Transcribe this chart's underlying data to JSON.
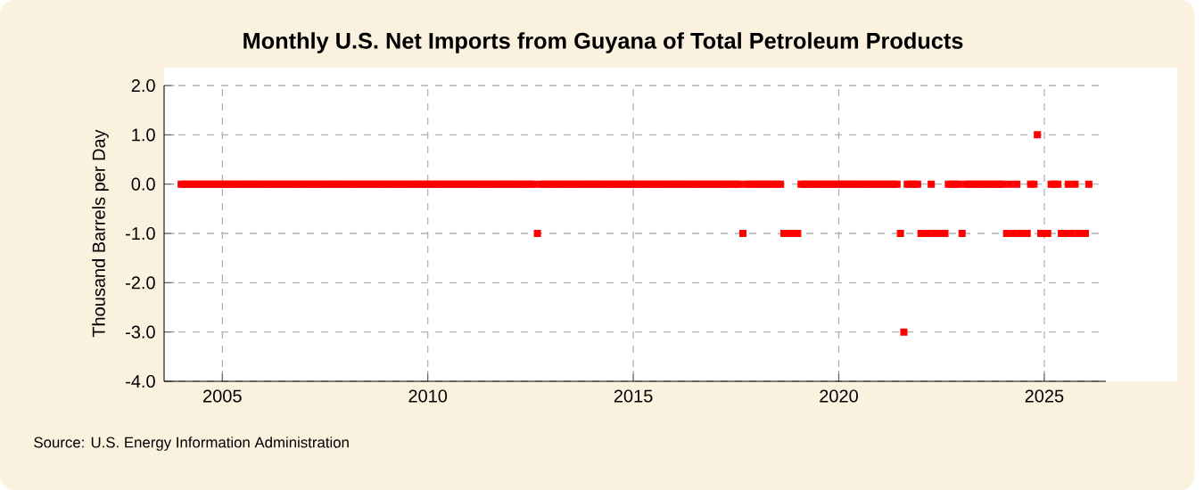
{
  "chart_data": {
    "type": "scatter",
    "title": "Monthly U.S. Net Imports from Guyana of Total Petroleum Products",
    "ylabel": "Thousand Barrels per Day",
    "annotations": [
      "Source: U.S. Energy Information Administration"
    ],
    "color": "#ff0000",
    "marker": "square",
    "grid": true,
    "xlim": [
      "2003-08",
      "2026-07"
    ],
    "xticks": [
      "2005",
      "2010",
      "2015",
      "2020",
      "2025"
    ],
    "ylim": [
      -4,
      2
    ],
    "yticks": [
      {
        "value": -4,
        "label": "-4.0"
      },
      {
        "value": -3,
        "label": "-3.0"
      },
      {
        "value": -2,
        "label": "-2.0"
      },
      {
        "value": -1,
        "label": "-1.0"
      },
      {
        "value": 0,
        "label": "0.0"
      },
      {
        "value": 1,
        "label": "1.0"
      },
      {
        "value": 2,
        "label": "2.0"
      }
    ],
    "x": [
      "2004-01",
      "2004-02",
      "2004-03",
      "2004-04",
      "2004-05",
      "2004-06",
      "2004-07",
      "2004-08",
      "2004-09",
      "2004-10",
      "2004-11",
      "2004-12",
      "2005-01",
      "2005-02",
      "2005-03",
      "2005-04",
      "2005-05",
      "2005-06",
      "2005-07",
      "2005-08",
      "2005-09",
      "2005-10",
      "2005-11",
      "2005-12",
      "2006-01",
      "2006-02",
      "2006-03",
      "2006-04",
      "2006-05",
      "2006-06",
      "2006-07",
      "2006-08",
      "2006-09",
      "2006-10",
      "2006-11",
      "2006-12",
      "2007-01",
      "2007-02",
      "2007-03",
      "2007-04",
      "2007-05",
      "2007-06",
      "2007-07",
      "2007-08",
      "2007-09",
      "2007-10",
      "2007-11",
      "2007-12",
      "2008-01",
      "2008-02",
      "2008-03",
      "2008-04",
      "2008-05",
      "2008-06",
      "2008-07",
      "2008-08",
      "2008-09",
      "2008-10",
      "2008-11",
      "2008-12",
      "2009-01",
      "2009-02",
      "2009-03",
      "2009-04",
      "2009-05",
      "2009-06",
      "2009-07",
      "2009-08",
      "2009-09",
      "2009-10",
      "2009-11",
      "2009-12",
      "2010-01",
      "2010-02",
      "2010-03",
      "2010-04",
      "2010-05",
      "2010-06",
      "2010-07",
      "2010-08",
      "2010-09",
      "2010-10",
      "2010-11",
      "2010-12",
      "2011-01",
      "2011-02",
      "2011-03",
      "2011-04",
      "2011-05",
      "2011-06",
      "2011-07",
      "2011-08",
      "2011-09",
      "2011-10",
      "2011-11",
      "2011-12",
      "2012-01",
      "2012-02",
      "2012-03",
      "2012-04",
      "2012-05",
      "2012-06",
      "2012-07",
      "2012-08",
      "2012-09",
      "2012-10",
      "2012-11",
      "2012-12",
      "2013-01",
      "2013-02",
      "2013-03",
      "2013-04",
      "2013-05",
      "2013-06",
      "2013-07",
      "2013-08",
      "2013-09",
      "2013-10",
      "2013-11",
      "2013-12",
      "2014-01",
      "2014-02",
      "2014-03",
      "2014-04",
      "2014-05",
      "2014-06",
      "2014-07",
      "2014-08",
      "2014-09",
      "2014-10",
      "2014-11",
      "2014-12",
      "2015-01",
      "2015-02",
      "2015-03",
      "2015-04",
      "2015-05",
      "2015-06",
      "2015-07",
      "2015-08",
      "2015-09",
      "2015-10",
      "2015-11",
      "2015-12",
      "2016-01",
      "2016-02",
      "2016-03",
      "2016-04",
      "2016-05",
      "2016-06",
      "2016-07",
      "2016-08",
      "2016-09",
      "2016-10",
      "2016-11",
      "2016-12",
      "2017-01",
      "2017-02",
      "2017-03",
      "2017-04",
      "2017-05",
      "2017-06",
      "2017-07",
      "2017-08",
      "2017-09",
      "2017-10",
      "2017-11",
      "2017-12",
      "2018-01",
      "2018-02",
      "2018-03",
      "2018-04",
      "2018-05",
      "2018-06",
      "2018-07",
      "2018-08",
      "2018-09",
      "2018-10",
      "2018-11",
      "2018-12",
      "2019-01",
      "2019-02",
      "2019-03",
      "2019-04",
      "2019-05",
      "2019-06",
      "2019-07",
      "2019-08",
      "2019-09",
      "2019-10",
      "2019-11",
      "2019-12",
      "2020-01",
      "2020-02",
      "2020-03",
      "2020-04",
      "2020-05",
      "2020-06",
      "2020-07",
      "2020-08",
      "2020-09",
      "2020-10",
      "2020-11",
      "2020-12",
      "2021-01",
      "2021-02",
      "2021-03",
      "2021-04",
      "2021-05",
      "2021-06",
      "2021-07",
      "2021-08",
      "2021-09",
      "2021-10",
      "2021-11",
      "2021-12",
      "2022-01",
      "2022-02",
      "2022-03",
      "2022-04",
      "2022-05",
      "2022-06",
      "2022-07",
      "2022-08",
      "2022-09",
      "2022-10",
      "2022-11",
      "2022-12",
      "2023-01",
      "2023-02",
      "2023-03",
      "2023-04",
      "2023-05",
      "2023-06",
      "2023-07",
      "2023-08",
      "2023-09",
      "2023-10",
      "2023-11",
      "2023-12",
      "2024-01",
      "2024-02",
      "2024-03",
      "2024-04",
      "2024-05",
      "2024-06",
      "2024-07",
      "2024-08",
      "2024-09",
      "2024-10",
      "2024-11",
      "2024-12",
      "2025-01",
      "2025-02",
      "2025-03",
      "2025-04",
      "2025-05",
      "2025-06",
      "2025-07",
      "2025-08",
      "2025-09",
      "2025-10",
      "2025-11",
      "2025-12",
      "2026-01",
      "2026-02"
    ],
    "values": [
      0,
      0,
      0,
      0,
      0,
      0,
      0,
      0,
      0,
      0,
      0,
      0,
      0,
      0,
      0,
      0,
      0,
      0,
      0,
      0,
      0,
      0,
      0,
      0,
      0,
      0,
      0,
      0,
      0,
      0,
      0,
      0,
      0,
      0,
      0,
      0,
      0,
      0,
      0,
      0,
      0,
      0,
      0,
      0,
      0,
      0,
      0,
      0,
      0,
      0,
      0,
      0,
      0,
      0,
      0,
      0,
      0,
      0,
      0,
      0,
      0,
      0,
      0,
      0,
      0,
      0,
      0,
      0,
      0,
      0,
      0,
      0,
      0,
      0,
      0,
      0,
      0,
      0,
      0,
      0,
      0,
      0,
      0,
      0,
      0,
      0,
      0,
      0,
      0,
      0,
      0,
      0,
      0,
      0,
      0,
      0,
      0,
      0,
      0,
      0,
      0,
      0,
      0,
      0,
      -1,
      0,
      0,
      0,
      0,
      0,
      0,
      0,
      0,
      0,
      0,
      0,
      0,
      0,
      0,
      0,
      0,
      0,
      0,
      0,
      0,
      0,
      0,
      0,
      0,
      0,
      0,
      0,
      0,
      0,
      0,
      0,
      0,
      0,
      0,
      0,
      0,
      0,
      0,
      0,
      0,
      0,
      0,
      0,
      0,
      0,
      0,
      0,
      0,
      0,
      0,
      0,
      0,
      0,
      0,
      0,
      0,
      0,
      0,
      0,
      -1,
      0,
      0,
      0,
      0,
      0,
      0,
      0,
      0,
      0,
      0,
      0,
      -1,
      -1,
      -1,
      -1,
      -1,
      0,
      0,
      0,
      0,
      0,
      0,
      0,
      0,
      0,
      0,
      0,
      0,
      0,
      0,
      0,
      0,
      0,
      0,
      0,
      0,
      0,
      0,
      0,
      0,
      0,
      0,
      0,
      0,
      0,
      -1,
      -3,
      0,
      0,
      0,
      0,
      -1,
      -1,
      -1,
      0,
      -1,
      -1,
      -1,
      -1,
      0,
      0,
      0,
      0,
      -1,
      0,
      0,
      0,
      0,
      0,
      0,
      0,
      0,
      0,
      0,
      0,
      0,
      -1,
      0,
      -1,
      0,
      -1,
      -1,
      -1,
      0,
      0,
      1,
      -1,
      -1,
      -1,
      0,
      0,
      0,
      -1,
      -1,
      0,
      -1,
      0,
      -1,
      -1,
      -1,
      0
    ]
  }
}
